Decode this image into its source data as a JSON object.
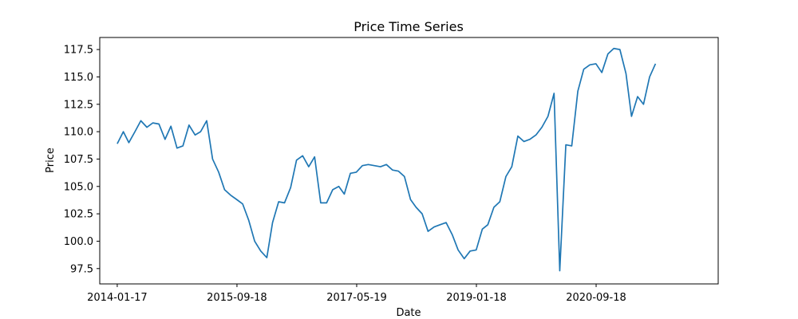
{
  "chart_data": {
    "type": "line",
    "title": "Price Time Series",
    "xlabel": "Date",
    "ylabel": "Price",
    "x_tick_labels": [
      "2014-01-17",
      "2015-09-18",
      "2017-05-19",
      "2019-01-18",
      "2020-09-18"
    ],
    "y_tick_labels": [
      "97.5",
      "100.0",
      "102.5",
      "105.0",
      "107.5",
      "110.0",
      "112.5",
      "115.0",
      "117.5"
    ],
    "ylim": [
      96.1,
      118.6
    ],
    "xlim": [
      "2013-10-20",
      "2022-06-01"
    ],
    "grid": false,
    "series": [
      {
        "color": "#1f77b4",
        "x": [
          "2014-01-17",
          "2014-02-17",
          "2014-03-17",
          "2014-04-17",
          "2014-05-17",
          "2014-06-17",
          "2014-07-17",
          "2014-08-17",
          "2014-09-17",
          "2014-10-17",
          "2014-11-17",
          "2014-12-17",
          "2015-01-17",
          "2015-02-17",
          "2015-03-17",
          "2015-04-17",
          "2015-05-17",
          "2015-06-17",
          "2015-07-17",
          "2015-08-17",
          "2015-09-17",
          "2015-10-17",
          "2015-11-17",
          "2015-12-17",
          "2016-01-17",
          "2016-02-17",
          "2016-03-17",
          "2016-04-17",
          "2016-05-17",
          "2016-06-17",
          "2016-07-17",
          "2016-08-17",
          "2016-09-17",
          "2016-10-17",
          "2016-11-17",
          "2016-12-17",
          "2017-01-17",
          "2017-02-17",
          "2017-03-17",
          "2017-04-17",
          "2017-05-17",
          "2017-06-17",
          "2017-07-17",
          "2017-08-17",
          "2017-09-17",
          "2017-10-17",
          "2017-11-17",
          "2017-12-17",
          "2018-01-17",
          "2018-02-17",
          "2018-03-17",
          "2018-04-17",
          "2018-05-17",
          "2018-06-17",
          "2018-07-17",
          "2018-08-17",
          "2018-09-17",
          "2018-10-17",
          "2018-11-17",
          "2018-12-17",
          "2019-01-17",
          "2019-02-17",
          "2019-03-17",
          "2019-04-17",
          "2019-05-17",
          "2019-06-17",
          "2019-07-17",
          "2019-08-17",
          "2019-09-17",
          "2019-10-17",
          "2019-11-17",
          "2019-12-17",
          "2020-01-17",
          "2020-02-17",
          "2020-03-17",
          "2020-04-17",
          "2020-05-17",
          "2020-06-17",
          "2020-07-17",
          "2020-08-17",
          "2020-09-17",
          "2020-10-17",
          "2020-11-17",
          "2020-12-17",
          "2021-01-17",
          "2021-02-17",
          "2021-03-17",
          "2021-04-17",
          "2021-05-17",
          "2021-06-17",
          "2021-07-17"
        ],
        "y": [
          108.9,
          110.0,
          109.0,
          110.0,
          111.0,
          110.4,
          110.8,
          110.7,
          109.3,
          110.5,
          108.5,
          108.7,
          110.6,
          109.7,
          110.0,
          111.0,
          107.5,
          106.3,
          104.7,
          104.2,
          103.8,
          103.4,
          101.9,
          100.0,
          99.1,
          98.5,
          101.7,
          103.6,
          103.5,
          104.9,
          107.4,
          107.8,
          106.8,
          107.7,
          103.5,
          103.5,
          104.7,
          105.0,
          104.3,
          106.2,
          106.3,
          106.9,
          107.0,
          106.9,
          106.8,
          107.0,
          106.5,
          106.4,
          105.9,
          103.8,
          103.1,
          102.5,
          100.9,
          101.3,
          101.5,
          101.7,
          100.6,
          99.2,
          98.4,
          99.1,
          99.2,
          101.1,
          101.5,
          103.1,
          103.6,
          105.9,
          106.8,
          109.6,
          109.1,
          109.3,
          109.7,
          110.4,
          111.4,
          113.5,
          97.3,
          108.8,
          108.7,
          113.7,
          115.7,
          116.1,
          116.2,
          115.4,
          117.1,
          117.6,
          117.5,
          115.3,
          111.4,
          113.2,
          112.5,
          115.0,
          116.2
        ]
      }
    ]
  }
}
